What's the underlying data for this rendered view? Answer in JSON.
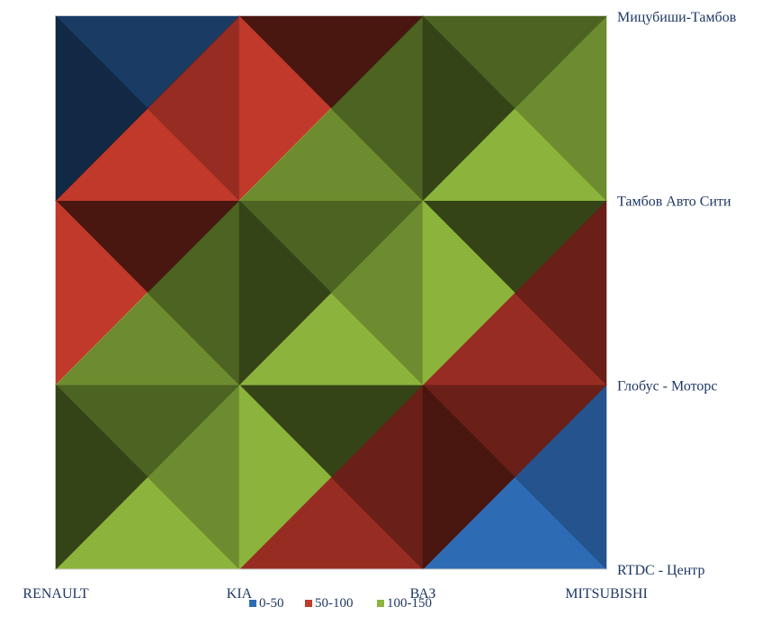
{
  "chart_data": {
    "type": "surface-contour",
    "x_categories": [
      "RENAULT",
      "KIA",
      "ВАЗ",
      "MITSUBISHI"
    ],
    "y_categories": [
      "RTDC - Центр",
      "Глобус - Моторс",
      "Тамбов Авто Сити",
      "Мицубиши-Тамбов"
    ],
    "values": [
      [
        150,
        100,
        50,
        0
      ],
      [
        100,
        150,
        100,
        50
      ],
      [
        50,
        100,
        150,
        100
      ],
      [
        0,
        50,
        100,
        150
      ]
    ],
    "bands": [
      {
        "label": "0-50",
        "min": 0,
        "max": 50,
        "color": "#2e6bb5"
      },
      {
        "label": "50-100",
        "min": 50,
        "max": 100,
        "color": "#c0392b"
      },
      {
        "label": "100-150",
        "min": 100,
        "max": 150,
        "color": "#8cb43c"
      }
    ],
    "legend_position": "bottom"
  }
}
